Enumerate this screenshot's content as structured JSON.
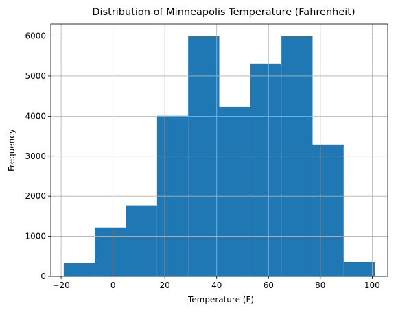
{
  "chart_data": {
    "type": "bar",
    "title": "Distribution of Minneapolis Temperature (Fahrenheit)",
    "xlabel": "Temperature (F)",
    "ylabel": "Frequency",
    "xlim": [
      -24,
      106
    ],
    "ylim": [
      0,
      6300
    ],
    "x_ticks": [
      -20,
      0,
      20,
      40,
      60,
      80,
      100
    ],
    "y_ticks": [
      0,
      1000,
      2000,
      3000,
      4000,
      5000,
      6000
    ],
    "grid": true,
    "bar_color": "#1f77b4",
    "bins": [
      {
        "start": -19,
        "end": -7,
        "value": 340
      },
      {
        "start": -7,
        "end": 5,
        "value": 1220
      },
      {
        "start": 5,
        "end": 17,
        "value": 1770
      },
      {
        "start": 17,
        "end": 29,
        "value": 4010
      },
      {
        "start": 29,
        "end": 41,
        "value": 6000
      },
      {
        "start": 41,
        "end": 53,
        "value": 4230
      },
      {
        "start": 53,
        "end": 65,
        "value": 5310
      },
      {
        "start": 65,
        "end": 77,
        "value": 6000
      },
      {
        "start": 77,
        "end": 89,
        "value": 3290
      },
      {
        "start": 89,
        "end": 101,
        "value": 360
      }
    ]
  }
}
